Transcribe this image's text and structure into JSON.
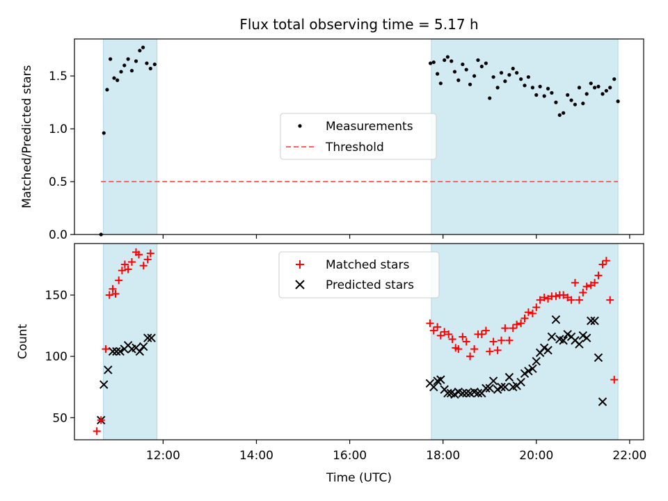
{
  "figure": {
    "title": "Flux total observing time = 5.17 h"
  },
  "colors": {
    "shade": "#add8e6",
    "threshold": "#ff6060",
    "matched": "#ff0000",
    "predicted": "#000000",
    "measurement": "#000000"
  },
  "chart_data": [
    {
      "type": "scatter",
      "panel": "top",
      "ylabel": "Matched/Predicted stars",
      "ylim": [
        0,
        1.85
      ],
      "yticks": [
        0.0,
        0.5,
        1.0,
        1.5
      ],
      "ytick_labels": [
        "0.0",
        "0.5",
        "1.0",
        "1.5"
      ],
      "xlim": [
        10.1,
        22.3
      ],
      "x_unit": "hours UTC",
      "observing_windows": [
        [
          10.72,
          11.87
        ],
        [
          17.75,
          21.75
        ]
      ],
      "legend": {
        "placement": "center",
        "entries": [
          "Measurements",
          "Threshold"
        ]
      },
      "threshold": {
        "name": "Threshold",
        "value": 0.5,
        "x_range": [
          10.67,
          21.75
        ]
      },
      "series": [
        {
          "name": "Measurements",
          "marker": "dot",
          "points": [
            [
              10.67,
              0.0
            ],
            [
              10.73,
              0.96
            ],
            [
              10.8,
              1.37
            ],
            [
              10.87,
              1.66
            ],
            [
              10.95,
              1.48
            ],
            [
              11.02,
              1.46
            ],
            [
              11.1,
              1.54
            ],
            [
              11.17,
              1.6
            ],
            [
              11.25,
              1.66
            ],
            [
              11.33,
              1.55
            ],
            [
              11.42,
              1.64
            ],
            [
              11.5,
              1.74
            ],
            [
              11.57,
              1.77
            ],
            [
              11.65,
              1.62
            ],
            [
              11.73,
              1.57
            ],
            [
              11.82,
              1.61
            ],
            [
              17.73,
              1.62
            ],
            [
              17.8,
              1.63
            ],
            [
              17.88,
              1.52
            ],
            [
              17.95,
              1.43
            ],
            [
              18.03,
              1.65
            ],
            [
              18.1,
              1.68
            ],
            [
              18.18,
              1.64
            ],
            [
              18.25,
              1.54
            ],
            [
              18.33,
              1.46
            ],
            [
              18.42,
              1.61
            ],
            [
              18.5,
              1.56
            ],
            [
              18.58,
              1.42
            ],
            [
              18.67,
              1.5
            ],
            [
              18.75,
              1.65
            ],
            [
              18.83,
              1.59
            ],
            [
              18.92,
              1.62
            ],
            [
              19.0,
              1.29
            ],
            [
              19.08,
              1.49
            ],
            [
              19.17,
              1.39
            ],
            [
              19.25,
              1.53
            ],
            [
              19.33,
              1.45
            ],
            [
              19.42,
              1.51
            ],
            [
              19.5,
              1.57
            ],
            [
              19.58,
              1.53
            ],
            [
              19.67,
              1.47
            ],
            [
              19.75,
              1.41
            ],
            [
              19.83,
              1.49
            ],
            [
              19.92,
              1.39
            ],
            [
              20.0,
              1.32
            ],
            [
              20.08,
              1.4
            ],
            [
              20.17,
              1.31
            ],
            [
              20.25,
              1.38
            ],
            [
              20.33,
              1.34
            ],
            [
              20.42,
              1.25
            ],
            [
              20.5,
              1.13
            ],
            [
              20.58,
              1.15
            ],
            [
              20.67,
              1.32
            ],
            [
              20.75,
              1.27
            ],
            [
              20.83,
              1.23
            ],
            [
              20.92,
              1.39
            ],
            [
              21.0,
              1.24
            ],
            [
              21.08,
              1.33
            ],
            [
              21.17,
              1.43
            ],
            [
              21.25,
              1.39
            ],
            [
              21.33,
              1.4
            ],
            [
              21.42,
              1.33
            ],
            [
              21.5,
              1.36
            ],
            [
              21.58,
              1.39
            ],
            [
              21.67,
              1.47
            ],
            [
              21.75,
              1.26
            ]
          ]
        }
      ]
    },
    {
      "type": "scatter",
      "panel": "bottom",
      "xlabel": "Time (UTC)",
      "ylabel": "Count",
      "ylim": [
        32,
        192
      ],
      "yticks": [
        50,
        100,
        150
      ],
      "ytick_labels": [
        "50",
        "100",
        "150"
      ],
      "xlim": [
        10.1,
        22.3
      ],
      "xticks": [
        12,
        14,
        16,
        18,
        20,
        22
      ],
      "xtick_labels": [
        "12:00",
        "14:00",
        "16:00",
        "18:00",
        "20:00",
        "22:00"
      ],
      "observing_windows": [
        [
          10.72,
          11.87
        ],
        [
          17.75,
          21.75
        ]
      ],
      "legend": {
        "placement": "upper center",
        "entries": [
          "Matched stars",
          "Predicted stars"
        ]
      },
      "series": [
        {
          "name": "Matched stars",
          "marker": "plus",
          "points": [
            [
              10.58,
              39
            ],
            [
              10.67,
              48
            ],
            [
              10.77,
              106
            ],
            [
              10.85,
              150
            ],
            [
              10.92,
              155
            ],
            [
              10.98,
              151
            ],
            [
              11.05,
              162
            ],
            [
              11.12,
              170
            ],
            [
              11.18,
              175
            ],
            [
              11.25,
              171
            ],
            [
              11.33,
              177
            ],
            [
              11.42,
              185
            ],
            [
              11.48,
              183
            ],
            [
              11.58,
              174
            ],
            [
              11.67,
              179
            ],
            [
              11.73,
              184
            ],
            [
              17.72,
              127
            ],
            [
              17.8,
              121
            ],
            [
              17.88,
              124
            ],
            [
              17.95,
              117
            ],
            [
              18.03,
              120
            ],
            [
              18.12,
              118
            ],
            [
              18.2,
              114
            ],
            [
              18.27,
              107
            ],
            [
              18.33,
              106
            ],
            [
              18.42,
              116
            ],
            [
              18.5,
              112
            ],
            [
              18.58,
              100
            ],
            [
              18.67,
              106
            ],
            [
              18.75,
              118
            ],
            [
              18.83,
              118
            ],
            [
              18.92,
              121
            ],
            [
              19.0,
              104
            ],
            [
              19.08,
              112
            ],
            [
              19.17,
              105
            ],
            [
              19.25,
              113
            ],
            [
              19.33,
              123
            ],
            [
              19.42,
              113
            ],
            [
              19.5,
              123
            ],
            [
              19.58,
              126
            ],
            [
              19.67,
              127
            ],
            [
              19.75,
              131
            ],
            [
              19.83,
              136
            ],
            [
              19.92,
              135
            ],
            [
              20.0,
              140
            ],
            [
              20.08,
              146
            ],
            [
              20.17,
              148
            ],
            [
              20.25,
              147
            ],
            [
              20.33,
              149
            ],
            [
              20.42,
              149
            ],
            [
              20.5,
              150
            ],
            [
              20.58,
              150
            ],
            [
              20.67,
              148
            ],
            [
              20.75,
              146
            ],
            [
              20.83,
              160
            ],
            [
              20.92,
              146
            ],
            [
              21.0,
              152
            ],
            [
              21.08,
              157
            ],
            [
              21.17,
              158
            ],
            [
              21.25,
              160
            ],
            [
              21.33,
              166
            ],
            [
              21.42,
              175
            ],
            [
              21.5,
              178
            ],
            [
              21.58,
              146
            ],
            [
              21.67,
              81
            ]
          ]
        },
        {
          "name": "Predicted stars",
          "marker": "x",
          "points": [
            [
              10.67,
              48
            ],
            [
              10.73,
              77
            ],
            [
              10.82,
              89
            ],
            [
              10.92,
              104
            ],
            [
              11.0,
              104
            ],
            [
              11.08,
              104
            ],
            [
              11.17,
              106
            ],
            [
              11.25,
              109
            ],
            [
              11.33,
              106
            ],
            [
              11.42,
              107
            ],
            [
              11.5,
              104
            ],
            [
              11.58,
              108
            ],
            [
              11.67,
              115
            ],
            [
              11.75,
              115
            ],
            [
              17.72,
              78
            ],
            [
              17.8,
              75
            ],
            [
              17.88,
              80
            ],
            [
              17.95,
              81
            ],
            [
              18.03,
              73
            ],
            [
              18.1,
              70
            ],
            [
              18.17,
              70
            ],
            [
              18.25,
              69
            ],
            [
              18.33,
              71
            ],
            [
              18.42,
              70
            ],
            [
              18.5,
              70
            ],
            [
              18.58,
              70
            ],
            [
              18.67,
              71
            ],
            [
              18.75,
              70
            ],
            [
              18.83,
              70
            ],
            [
              18.92,
              74
            ],
            [
              19.0,
              74
            ],
            [
              19.08,
              80
            ],
            [
              19.17,
              73
            ],
            [
              19.25,
              75
            ],
            [
              19.33,
              75
            ],
            [
              19.42,
              83
            ],
            [
              19.5,
              75
            ],
            [
              19.58,
              76
            ],
            [
              19.67,
              79
            ],
            [
              19.75,
              86
            ],
            [
              19.83,
              88
            ],
            [
              19.92,
              90
            ],
            [
              20.0,
              96
            ],
            [
              20.08,
              103
            ],
            [
              20.17,
              107
            ],
            [
              20.25,
              105
            ],
            [
              20.33,
              116
            ],
            [
              20.42,
              130
            ],
            [
              20.5,
              114
            ],
            [
              20.58,
              113
            ],
            [
              20.67,
              118
            ],
            [
              20.75,
              116
            ],
            [
              20.83,
              113
            ],
            [
              20.92,
              110
            ],
            [
              21.0,
              117
            ],
            [
              21.08,
              115
            ],
            [
              21.17,
              129
            ],
            [
              21.25,
              129
            ],
            [
              21.33,
              99
            ],
            [
              21.42,
              63
            ]
          ]
        }
      ]
    }
  ]
}
